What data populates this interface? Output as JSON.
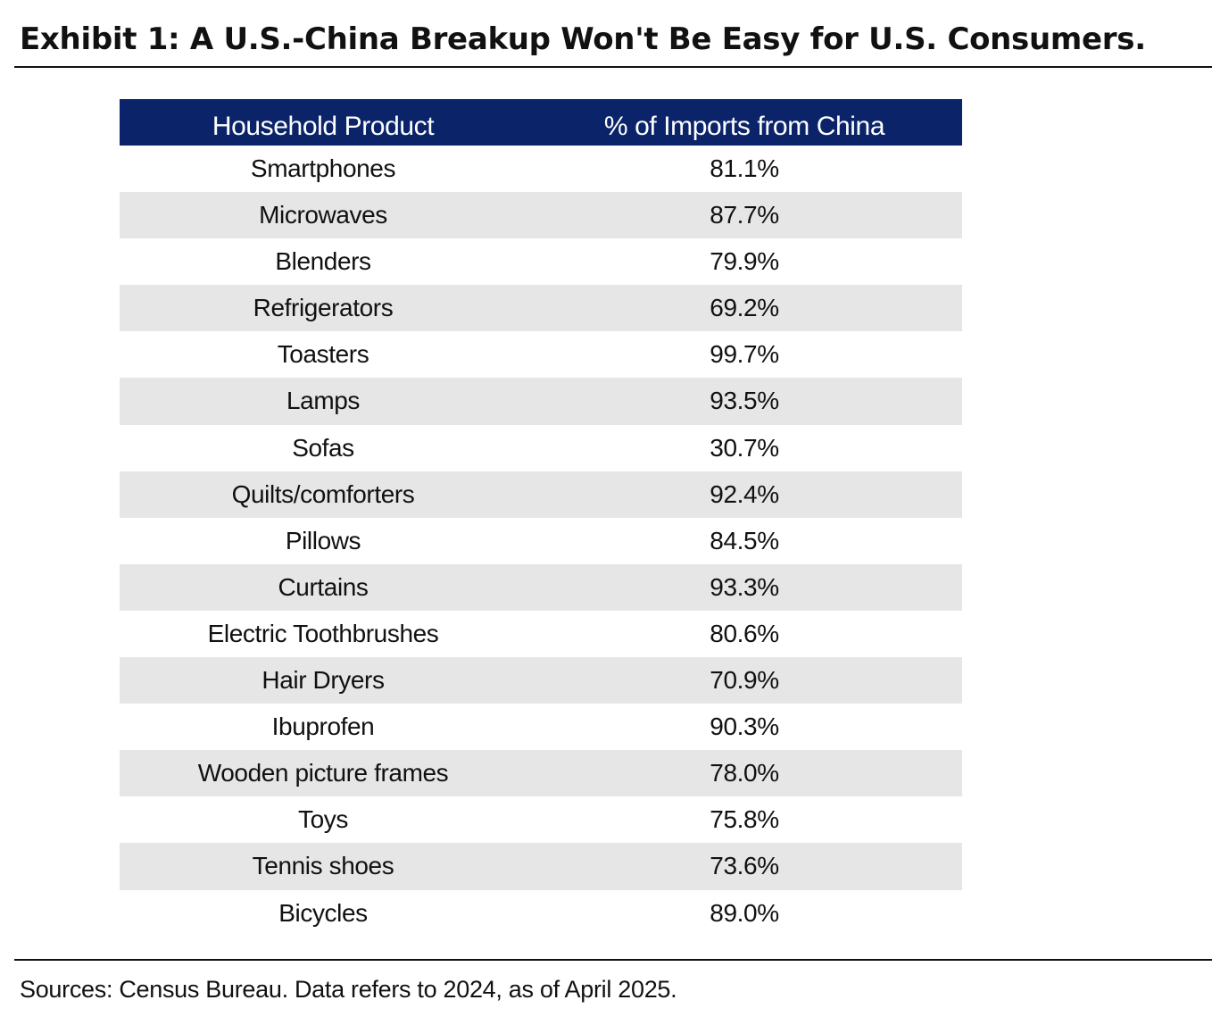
{
  "title": "Exhibit 1: A U.S.-China Breakup Won't Be Easy for U.S. Consumers.",
  "table": {
    "header": {
      "product": "Household Product",
      "percent": "% of Imports from China"
    },
    "header_color": "#0b2469",
    "stripe_color": "#e6e6e6",
    "rows": [
      {
        "product": "Smartphones",
        "percent": "81.1%"
      },
      {
        "product": "Microwaves",
        "percent": "87.7%"
      },
      {
        "product": "Blenders",
        "percent": "79.9%"
      },
      {
        "product": "Refrigerators",
        "percent": "69.2%"
      },
      {
        "product": "Toasters",
        "percent": "99.7%"
      },
      {
        "product": "Lamps",
        "percent": "93.5%"
      },
      {
        "product": "Sofas",
        "percent": "30.7%"
      },
      {
        "product": "Quilts/comforters",
        "percent": "92.4%"
      },
      {
        "product": "Pillows",
        "percent": "84.5%"
      },
      {
        "product": "Curtains",
        "percent": "93.3%"
      },
      {
        "product": "Electric Toothbrushes",
        "percent": "80.6%"
      },
      {
        "product": "Hair Dryers",
        "percent": "70.9%"
      },
      {
        "product": "Ibuprofen",
        "percent": "90.3%"
      },
      {
        "product": "Wooden picture frames",
        "percent": "78.0%"
      },
      {
        "product": "Toys",
        "percent": "75.8%"
      },
      {
        "product": "Tennis shoes",
        "percent": "73.6%"
      },
      {
        "product": "Bicycles",
        "percent": "89.0%"
      }
    ]
  },
  "sources": "Sources: Census Bureau. Data refers to 2024, as of April 2025."
}
